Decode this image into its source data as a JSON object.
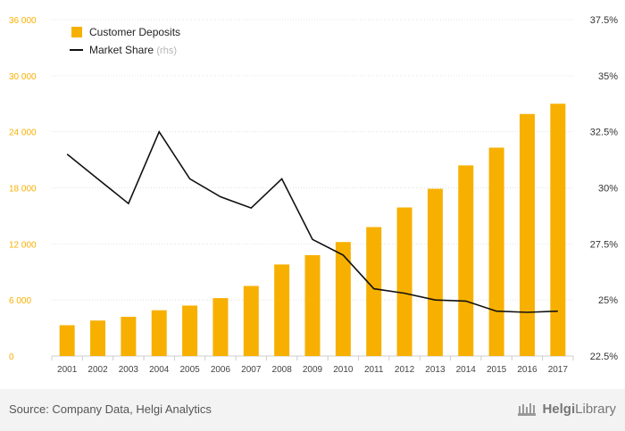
{
  "chart_data": {
    "type": "bar",
    "categories": [
      "2001",
      "2002",
      "2003",
      "2004",
      "2005",
      "2006",
      "2007",
      "2008",
      "2009",
      "2010",
      "2011",
      "2012",
      "2013",
      "2014",
      "2015",
      "2016",
      "2017"
    ],
    "series": [
      {
        "name": "Customer Deposits",
        "type": "bar",
        "axis": "left",
        "color": "#f7b000",
        "values": [
          3300,
          3800,
          4200,
          4900,
          5400,
          6200,
          7500,
          9800,
          10800,
          12200,
          13800,
          15900,
          17900,
          20400,
          22300,
          25900,
          27000
        ]
      },
      {
        "name": "Market Share",
        "name_suffix": "(rhs)",
        "type": "line",
        "axis": "right",
        "color": "#111111",
        "values": [
          31.5,
          30.4,
          29.3,
          32.5,
          30.4,
          29.6,
          29.1,
          30.4,
          27.7,
          27.0,
          25.5,
          25.3,
          25.0,
          24.95,
          24.5,
          24.45,
          24.5
        ]
      }
    ],
    "y_left": {
      "min": 0,
      "max": 36000,
      "ticks": [
        0,
        6000,
        12000,
        18000,
        24000,
        30000,
        36000
      ],
      "tick_labels": [
        "0",
        "6 000",
        "12 000",
        "18 000",
        "24 000",
        "30 000",
        "36 000"
      ],
      "color": "#f7b000"
    },
    "y_right": {
      "min": 22.5,
      "max": 37.5,
      "ticks": [
        22.5,
        25,
        27.5,
        30,
        32.5,
        35,
        37.5
      ],
      "tick_labels": [
        "22.5%",
        "25%",
        "27.5%",
        "30%",
        "32.5%",
        "35%",
        "37.5%"
      ]
    },
    "grid": true,
    "legend_position": "top-left"
  },
  "footer": {
    "source": "Source: Company Data, Helgi Analytics",
    "brand_prefix": "Helgi",
    "brand_suffix": "Library"
  }
}
